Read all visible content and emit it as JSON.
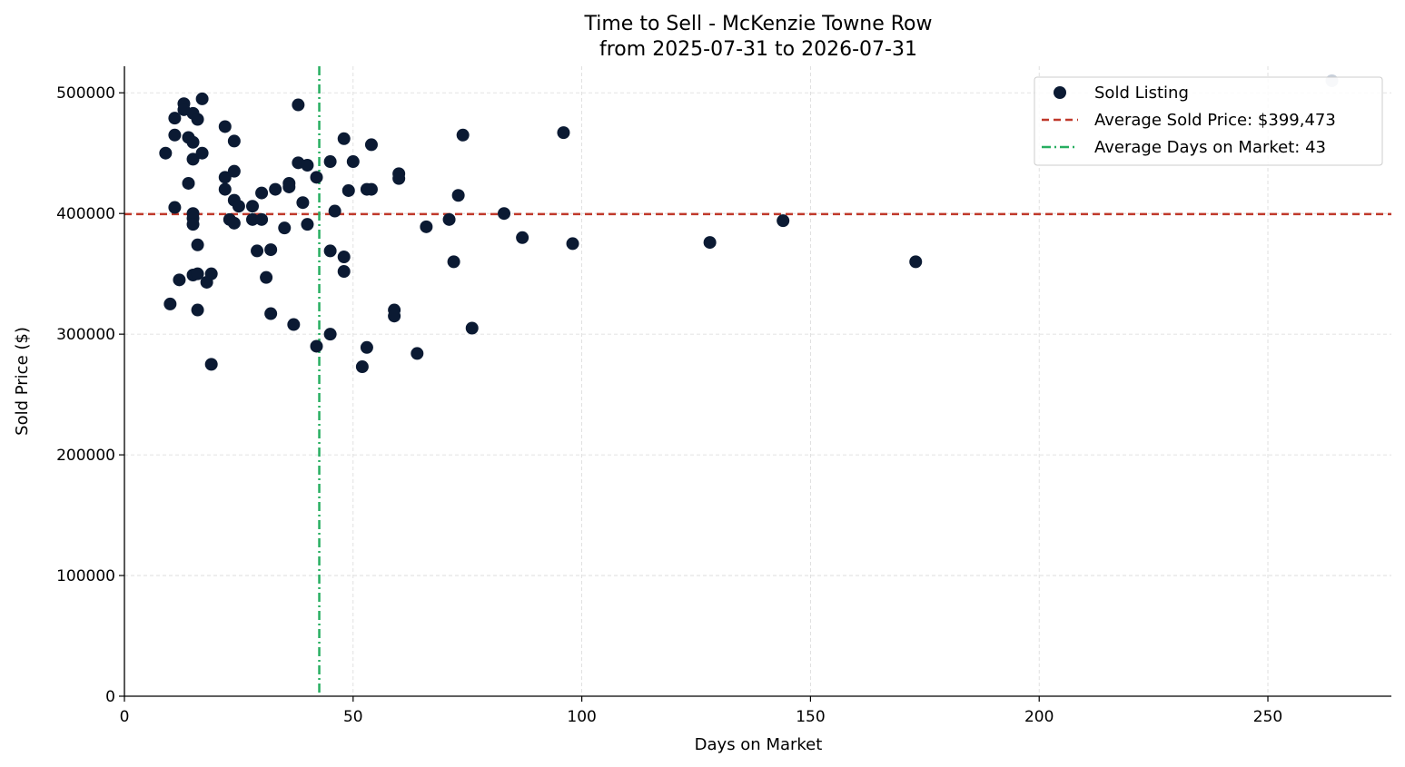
{
  "chart_data": {
    "type": "scatter",
    "title": "Time to Sell - McKenzie Towne Row",
    "subtitle": "from 2025-07-31 to 2026-07-31",
    "xlabel": "Days on Market",
    "ylabel": "Sold Price ($)",
    "xlim": [
      0,
      277
    ],
    "ylim": [
      0,
      522000
    ],
    "x_ticks": [
      0,
      50,
      100,
      150,
      200,
      250
    ],
    "y_ticks": [
      0,
      100000,
      200000,
      300000,
      400000,
      500000
    ],
    "x_tick_labels": [
      "0",
      "50",
      "100",
      "150",
      "200",
      "250"
    ],
    "y_tick_labels": [
      "0",
      "100000",
      "200000",
      "300000",
      "400000",
      "500000"
    ],
    "grid": true,
    "legend_position": "top-right",
    "colors": {
      "points": "#0b1a33",
      "outlier_point": "#c8d0db",
      "avg_price_line": "#c0392b",
      "avg_days_line": "#27ae60",
      "grid": "#d9d9d9"
    },
    "series": [
      {
        "name": "Sold Listing",
        "points": [
          [
            9,
            450000
          ],
          [
            10,
            325000
          ],
          [
            11,
            465000
          ],
          [
            11,
            479000
          ],
          [
            11,
            405000
          ],
          [
            12,
            345000
          ],
          [
            13,
            491000
          ],
          [
            13,
            486000
          ],
          [
            14,
            463000
          ],
          [
            14,
            425000
          ],
          [
            15,
            483000
          ],
          [
            15,
            459000
          ],
          [
            15,
            445000
          ],
          [
            15,
            400000
          ],
          [
            15,
            396000
          ],
          [
            15,
            391000
          ],
          [
            15,
            349000
          ],
          [
            16,
            478000
          ],
          [
            16,
            374000
          ],
          [
            16,
            350000
          ],
          [
            16,
            320000
          ],
          [
            17,
            495000
          ],
          [
            17,
            450000
          ],
          [
            18,
            343000
          ],
          [
            19,
            350000
          ],
          [
            19,
            275000
          ],
          [
            22,
            472000
          ],
          [
            22,
            430000
          ],
          [
            22,
            420000
          ],
          [
            23,
            395000
          ],
          [
            24,
            460000
          ],
          [
            24,
            435000
          ],
          [
            24,
            411000
          ],
          [
            24,
            392000
          ],
          [
            25,
            406000
          ],
          [
            28,
            406000
          ],
          [
            28,
            395000
          ],
          [
            29,
            369000
          ],
          [
            30,
            417000
          ],
          [
            30,
            395000
          ],
          [
            31,
            347000
          ],
          [
            32,
            370000
          ],
          [
            32,
            317000
          ],
          [
            33,
            420000
          ],
          [
            35,
            388000
          ],
          [
            36,
            425000
          ],
          [
            36,
            422000
          ],
          [
            37,
            308000
          ],
          [
            38,
            490000
          ],
          [
            38,
            442000
          ],
          [
            39,
            409000
          ],
          [
            40,
            440000
          ],
          [
            40,
            391000
          ],
          [
            42,
            430000
          ],
          [
            42,
            290000
          ],
          [
            45,
            443000
          ],
          [
            45,
            369000
          ],
          [
            45,
            300000
          ],
          [
            46,
            402000
          ],
          [
            48,
            462000
          ],
          [
            48,
            364000
          ],
          [
            48,
            352000
          ],
          [
            49,
            419000
          ],
          [
            50,
            443000
          ],
          [
            52,
            273000
          ],
          [
            53,
            420000
          ],
          [
            53,
            289000
          ],
          [
            54,
            457000
          ],
          [
            54,
            420000
          ],
          [
            59,
            320000
          ],
          [
            59,
            315000
          ],
          [
            60,
            433000
          ],
          [
            60,
            429000
          ],
          [
            64,
            284000
          ],
          [
            66,
            389000
          ],
          [
            71,
            395000
          ],
          [
            72,
            360000
          ],
          [
            73,
            415000
          ],
          [
            74,
            465000
          ],
          [
            76,
            305000
          ],
          [
            83,
            400000
          ],
          [
            87,
            380000
          ],
          [
            96,
            467000
          ],
          [
            98,
            375000
          ],
          [
            128,
            376000
          ],
          [
            144,
            394000
          ],
          [
            173,
            360000
          ]
        ],
        "outliers": [
          [
            264,
            510000
          ]
        ]
      }
    ],
    "reference_lines": [
      {
        "orientation": "horizontal",
        "value": 399473,
        "style": "dashed"
      },
      {
        "orientation": "vertical",
        "value": 42.6,
        "style": "dashdot"
      }
    ],
    "legend": {
      "entries": [
        "Sold Listing",
        "Average Sold Price: $399,473",
        "Average Days on Market: 43"
      ]
    }
  }
}
